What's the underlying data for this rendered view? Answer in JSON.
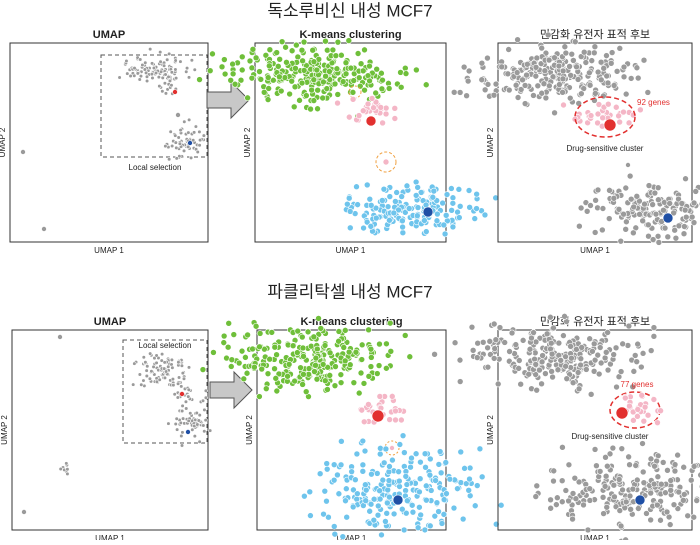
{
  "rows": [
    {
      "title": "독소루비신 내성 MCF7",
      "panels": [
        {
          "title": "UMAP",
          "x_label": "UMAP 1",
          "y_label": "UMAP 2",
          "annotation": "Local selection"
        },
        {
          "title": "K-means clustering",
          "x_label": "UMAP 1",
          "y_label": "UMAP 2"
        },
        {
          "title": "민감화 유전자 표적 후보",
          "x_label": "UMAP 1",
          "y_label": "UMAP 2",
          "gene_count": "92 genes",
          "cluster_label": "Drug-sensitive cluster"
        }
      ]
    },
    {
      "title": "파클리탁셀 내성 MCF7",
      "panels": [
        {
          "title": "UMAP",
          "x_label": "UMAP 1",
          "y_label": "UMAP 2",
          "annotation": "Local selection"
        },
        {
          "title": "K-means clustering",
          "x_label": "UMAP 1",
          "y_label": "UMAP 2"
        },
        {
          "title": "민감화 유전자 표적 후보",
          "x_label": "UMAP 1",
          "y_label": "UMAP 2",
          "gene_count": "77 genes",
          "cluster_label": "Drug-sensitive cluster"
        }
      ]
    }
  ]
}
